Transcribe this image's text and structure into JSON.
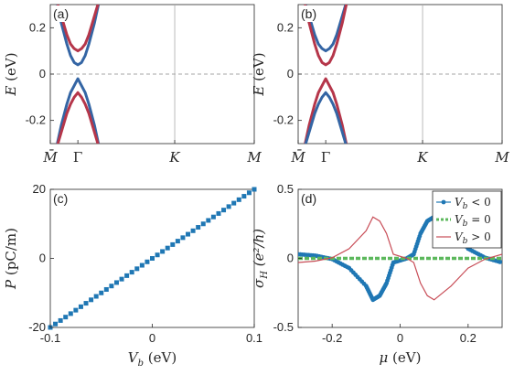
{
  "chart_data": [
    {
      "panel": "(a)",
      "type": "line",
      "ylabel": "E (eV)",
      "ylim": [
        -0.3,
        0.3
      ],
      "yticks": [
        "0.2",
        "0",
        "-0.2"
      ],
      "ytick_values": [
        0.2,
        0,
        -0.2
      ],
      "xticks": [
        "M̄",
        "Γ",
        "K",
        "M"
      ],
      "x": [
        -0.12,
        -0.09,
        -0.06,
        -0.04,
        -0.02,
        0,
        0.02,
        0.04,
        0.06,
        0.09,
        0.12
      ],
      "series": [
        {
          "color": "#3465a4",
          "values": [
            0.33,
            0.22,
            0.13,
            0.08,
            0.05,
            0.04,
            0.05,
            0.08,
            0.13,
            0.22,
            0.33
          ]
        },
        {
          "color": "#b5364a",
          "values": [
            0.33,
            0.25,
            0.17,
            0.13,
            0.11,
            0.1,
            0.11,
            0.13,
            0.17,
            0.25,
            0.33
          ]
        },
        {
          "color": "#3465a4",
          "values": [
            -0.33,
            -0.22,
            -0.13,
            -0.08,
            -0.05,
            -0.02,
            -0.05,
            -0.08,
            -0.13,
            -0.22,
            -0.33
          ]
        },
        {
          "color": "#b5364a",
          "values": [
            -0.33,
            -0.25,
            -0.17,
            -0.13,
            -0.1,
            -0.08,
            -0.1,
            -0.13,
            -0.17,
            -0.25,
            -0.33
          ]
        }
      ]
    },
    {
      "panel": "(b)",
      "type": "line",
      "ylabel": "E (eV)",
      "ylim": [
        -0.3,
        0.3
      ],
      "yticks": [
        "0.2",
        "0",
        "-0.2"
      ],
      "ytick_values": [
        0.2,
        0,
        -0.2
      ],
      "xticks": [
        "M̄",
        "Γ",
        "K",
        "M"
      ],
      "x": [
        -0.12,
        -0.09,
        -0.06,
        -0.04,
        -0.02,
        0,
        0.02,
        0.04,
        0.06,
        0.09,
        0.12
      ],
      "series": [
        {
          "color": "#3465a4",
          "values": [
            0.33,
            0.25,
            0.17,
            0.13,
            0.11,
            0.1,
            0.11,
            0.13,
            0.17,
            0.25,
            0.33
          ]
        },
        {
          "color": "#b5364a",
          "values": [
            0.33,
            0.22,
            0.13,
            0.08,
            0.05,
            0.04,
            0.05,
            0.08,
            0.13,
            0.22,
            0.33
          ]
        },
        {
          "color": "#b5364a",
          "values": [
            -0.33,
            -0.22,
            -0.13,
            -0.08,
            -0.05,
            -0.02,
            -0.05,
            -0.08,
            -0.13,
            -0.22,
            -0.33
          ]
        },
        {
          "color": "#3465a4",
          "values": [
            -0.33,
            -0.25,
            -0.17,
            -0.13,
            -0.1,
            -0.08,
            -0.1,
            -0.13,
            -0.17,
            -0.25,
            -0.33
          ]
        }
      ]
    },
    {
      "panel": "(c)",
      "type": "scatter",
      "xlabel": "V_b (eV)",
      "ylabel": "P (pC/m)",
      "xlim": [
        -0.1,
        0.1
      ],
      "ylim": [
        -20,
        20
      ],
      "xticks": [
        "-0.1",
        "0",
        "0.1"
      ],
      "xtick_values": [
        -0.1,
        0,
        0.1
      ],
      "yticks": [
        "20",
        "0",
        "-20"
      ],
      "ytick_values": [
        20,
        0,
        -20
      ],
      "series": [
        {
          "color": "#1f77b4",
          "x_start": -0.1,
          "x_end": 0.1,
          "y_start": -20,
          "y_end": 20,
          "count": 41
        }
      ]
    },
    {
      "panel": "(d)",
      "type": "line",
      "xlabel": "μ (eV)",
      "ylabel": "σ_H (e²/h)",
      "xlim": [
        -0.3,
        0.3
      ],
      "ylim": [
        -0.5,
        0.5
      ],
      "xticks": [
        "-0.2",
        "0",
        "0.2"
      ],
      "xtick_values": [
        -0.2,
        0,
        0.2
      ],
      "yticks": [
        "0.5",
        "0",
        "-0.5"
      ],
      "ytick_values": [
        0.5,
        0,
        -0.5
      ],
      "legend": [
        "V_b < 0",
        "V_b = 0",
        "V_b > 0"
      ],
      "legend_position": "top-right",
      "series": [
        {
          "name": "V_b < 0",
          "color": "#1f77b4",
          "style": "dots",
          "x": [
            -0.3,
            -0.25,
            -0.2,
            -0.15,
            -0.1,
            -0.08,
            -0.06,
            -0.04,
            -0.02,
            0.02,
            0.04,
            0.06,
            0.08,
            0.1,
            0.15,
            0.2,
            0.25,
            0.3
          ],
          "y": [
            0.03,
            0.02,
            -0.005,
            -0.07,
            -0.2,
            -0.3,
            -0.27,
            -0.18,
            -0.03,
            0,
            0.03,
            0.18,
            0.27,
            0.3,
            0.2,
            0.07,
            0.005,
            -0.03
          ]
        },
        {
          "name": "V_b = 0",
          "color": "#5cb85c",
          "style": "dashed",
          "x": [
            -0.3,
            0.3
          ],
          "y": [
            0,
            0
          ]
        },
        {
          "name": "V_b > 0",
          "color": "#c84d57",
          "style": "solid",
          "x": [
            -0.3,
            -0.25,
            -0.2,
            -0.15,
            -0.1,
            -0.08,
            -0.06,
            -0.04,
            -0.02,
            0.02,
            0.04,
            0.06,
            0.08,
            0.1,
            0.15,
            0.2,
            0.25,
            0.3
          ],
          "y": [
            -0.03,
            -0.02,
            0.005,
            0.07,
            0.2,
            0.3,
            0.27,
            0.18,
            0.03,
            0,
            -0.03,
            -0.18,
            -0.27,
            -0.3,
            -0.2,
            -0.07,
            -0.005,
            0.03
          ]
        }
      ]
    }
  ]
}
